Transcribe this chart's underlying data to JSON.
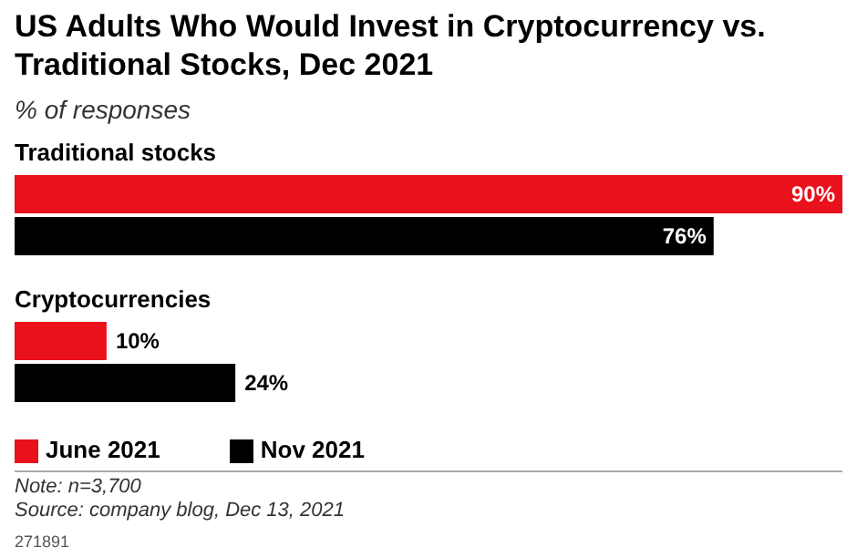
{
  "chart_data": {
    "type": "bar",
    "orientation": "horizontal",
    "title": "US Adults Who Would Invest in Cryptocurrency vs. Traditional Stocks, Dec 2021",
    "subtitle": "% of responses",
    "categories": [
      "Traditional stocks",
      "Cryptocurrencies"
    ],
    "series": [
      {
        "name": "June 2021",
        "color": "#e8111c",
        "values": [
          90,
          10
        ],
        "value_labels": [
          "90%",
          "10%"
        ]
      },
      {
        "name": "Nov 2021",
        "color": "#000000",
        "values": [
          76,
          24
        ],
        "value_labels": [
          "76%",
          "24%"
        ]
      }
    ],
    "legend": "bottom",
    "tick_labels": "y",
    "annotations": [
      "Note: n=3,700",
      "Source: company blog, Dec 13, 2021",
      "271891"
    ]
  }
}
